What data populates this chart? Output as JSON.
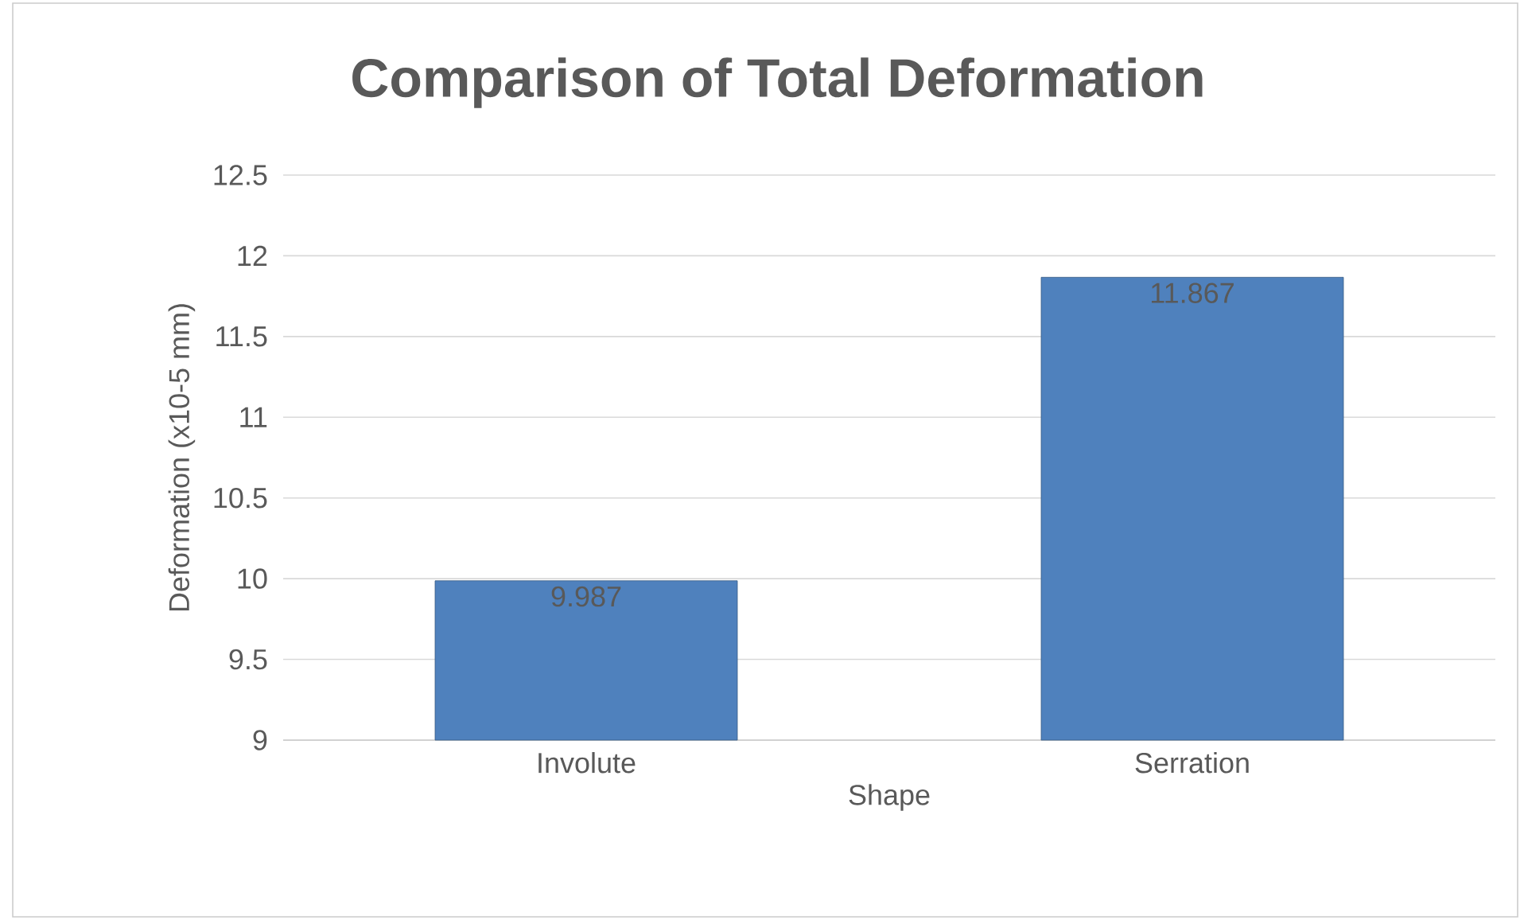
{
  "chart_data": {
    "type": "bar",
    "title": "Comparison of Total Deformation",
    "xlabel": "Shape",
    "ylabel": "Deformation (x10-5 mm)",
    "categories": [
      "Involute",
      "Serration"
    ],
    "values": [
      9.987,
      11.867
    ],
    "color": "#4f81bd",
    "ylim": [
      9,
      12.5
    ],
    "yticks": [
      9,
      9.5,
      10,
      10.5,
      11,
      11.5,
      12,
      12.5
    ],
    "grid": "y",
    "data_labels": true
  }
}
